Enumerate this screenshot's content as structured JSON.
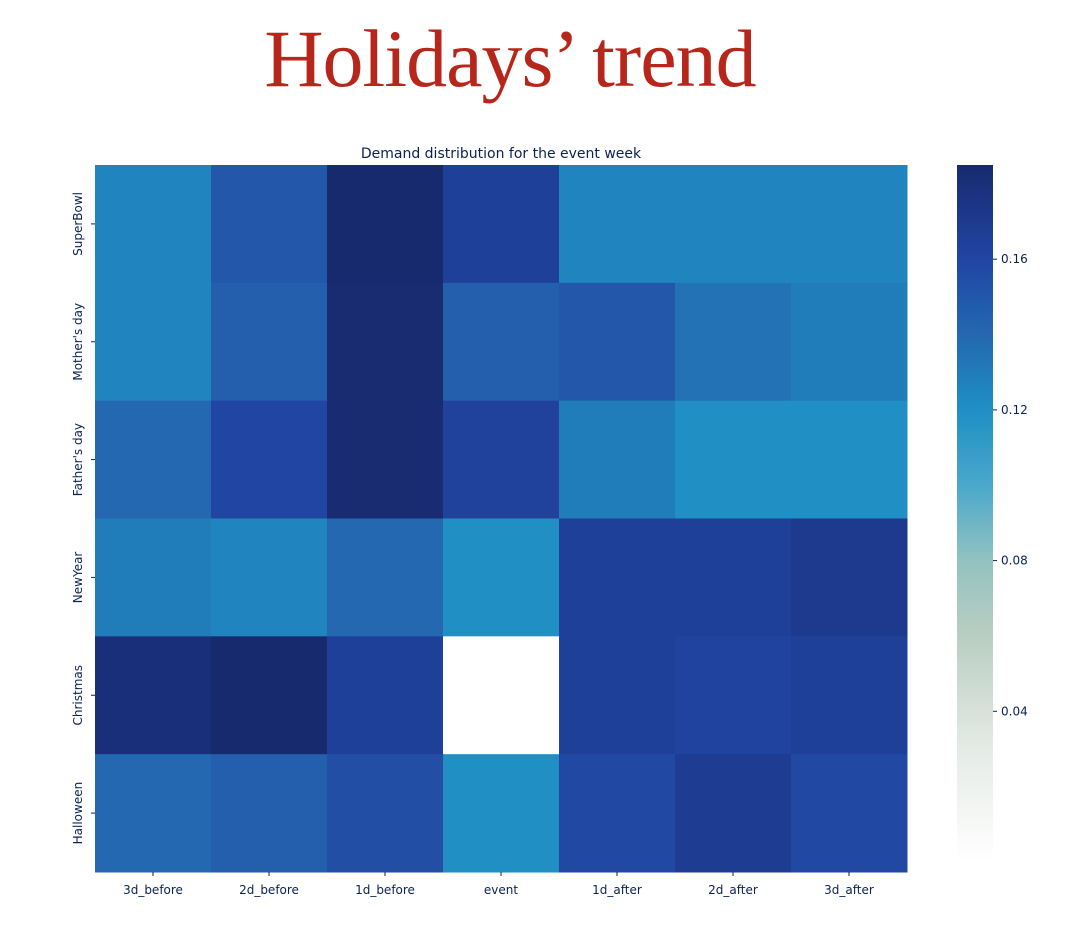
{
  "page": {
    "title": "Holidays’ trend"
  },
  "chart_data": {
    "type": "heatmap",
    "title": "Demand distribution for the event week",
    "xlabel": "",
    "ylabel": "",
    "x_categories": [
      "3d_before",
      "2d_before",
      "1d_before",
      "event",
      "1d_after",
      "2d_after",
      "3d_after"
    ],
    "y_categories": [
      "SuperBowl",
      "Mother's day",
      "Father's day",
      "NewYear",
      "Christmas",
      "Halloween"
    ],
    "values": [
      [
        0.125,
        0.15,
        0.185,
        0.165,
        0.125,
        0.125,
        0.125
      ],
      [
        0.125,
        0.145,
        0.183,
        0.145,
        0.15,
        0.135,
        0.13
      ],
      [
        0.14,
        0.16,
        0.183,
        0.163,
        0.13,
        0.12,
        0.12
      ],
      [
        0.13,
        0.125,
        0.14,
        0.12,
        0.165,
        0.165,
        0.17
      ],
      [
        0.18,
        0.185,
        0.165,
        null,
        0.165,
        0.162,
        0.165
      ],
      [
        0.14,
        0.145,
        0.155,
        0.12,
        0.158,
        0.168,
        0.158
      ]
    ],
    "colorbar": {
      "min": 0.0,
      "max": 0.185,
      "ticks": [
        0.04,
        0.08,
        0.12,
        0.16
      ],
      "tick_labels": [
        "0.04",
        "0.08",
        "0.12",
        "0.16"
      ],
      "colormap": [
        {
          "v": 0.0,
          "color": "#ffffff"
        },
        {
          "v": 0.03,
          "color": "#e5ebe6"
        },
        {
          "v": 0.06,
          "color": "#b9cec2"
        },
        {
          "v": 0.08,
          "color": "#93c2c0"
        },
        {
          "v": 0.1,
          "color": "#4aa8cb"
        },
        {
          "v": 0.12,
          "color": "#1f8fc4"
        },
        {
          "v": 0.14,
          "color": "#2368b0"
        },
        {
          "v": 0.16,
          "color": "#2145a3"
        },
        {
          "v": 0.185,
          "color": "#182a6e"
        }
      ]
    },
    "missing_color": "#ffffff",
    "grid": false,
    "legend": "colorbar-right"
  }
}
